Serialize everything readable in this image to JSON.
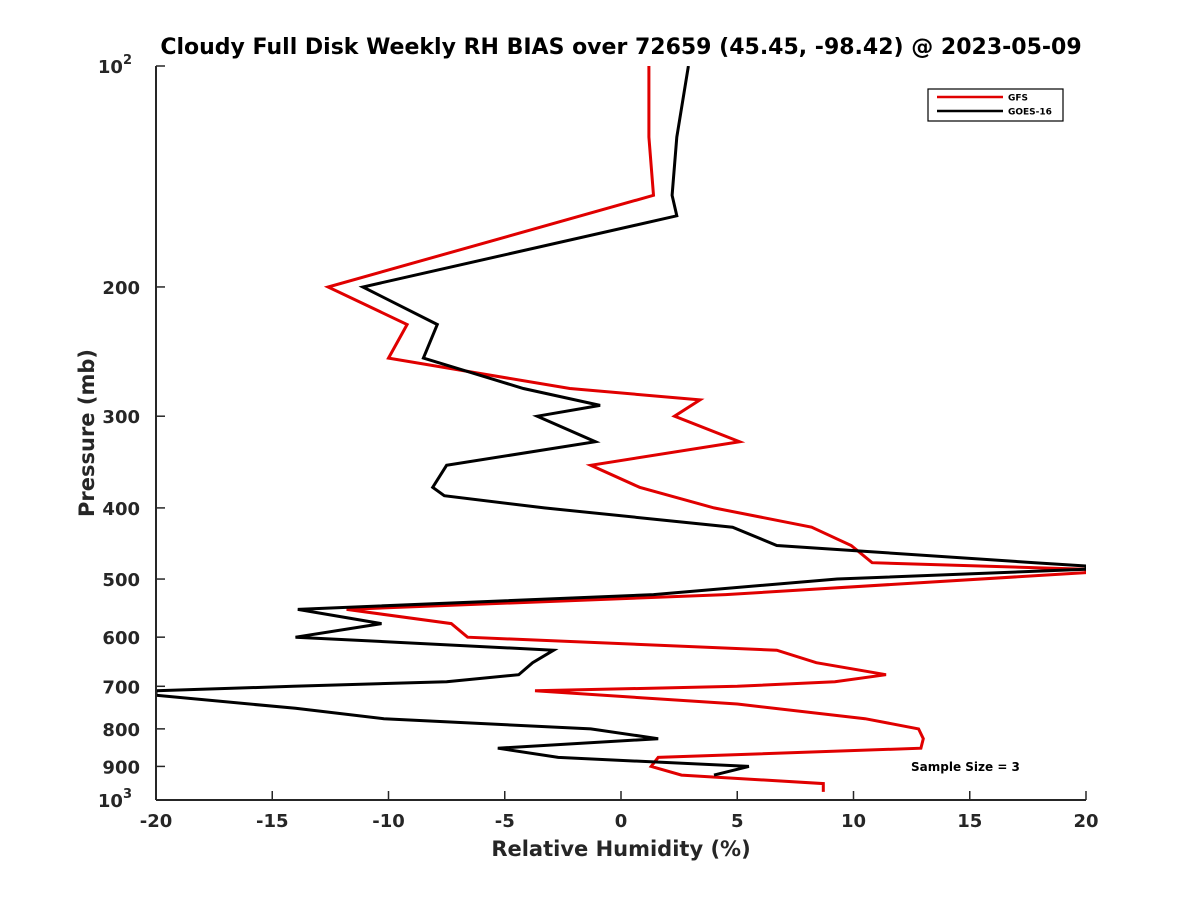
{
  "chart_data": {
    "type": "line",
    "title": "Cloudy Full Disk Weekly RH BIAS over 72659 (45.45, -98.42) @ 2023-05-09",
    "xlabel": "Relative Humidity (%)",
    "ylabel": "Pressure (mb)",
    "xlim": [
      -20,
      20
    ],
    "ylim": [
      100,
      1000
    ],
    "yscale": "log",
    "y_reversed": true,
    "x_ticks": [
      "-20",
      "-15",
      "-10",
      "-5",
      "0",
      "5",
      "10",
      "15",
      "20"
    ],
    "y_ticks": [
      {
        "value": 100,
        "base": "10",
        "exp": "2"
      },
      {
        "value": 200,
        "label": "200"
      },
      {
        "value": 300,
        "label": "300"
      },
      {
        "value": 400,
        "label": "400"
      },
      {
        "value": 500,
        "label": "500"
      },
      {
        "value": 600,
        "label": "600"
      },
      {
        "value": 700,
        "label": "700"
      },
      {
        "value": 800,
        "label": "800"
      },
      {
        "value": 900,
        "label": "900"
      },
      {
        "value": 1000,
        "base": "10",
        "exp": "3"
      }
    ],
    "legend_position": "top-right",
    "annotation": "Sample Size = 3",
    "series": [
      {
        "name": "GFS",
        "color": "#e00000",
        "points": [
          [
            1.2,
            100
          ],
          [
            1.2,
            125
          ],
          [
            1.4,
            150
          ],
          [
            -12.6,
            200
          ],
          [
            -9.2,
            225
          ],
          [
            -10.0,
            250
          ],
          [
            -2.2,
            275
          ],
          [
            3.4,
            285
          ],
          [
            2.3,
            300
          ],
          [
            5.1,
            325
          ],
          [
            -1.3,
            350
          ],
          [
            0.8,
            375
          ],
          [
            4.0,
            400
          ],
          [
            8.2,
            425
          ],
          [
            9.9,
            450
          ],
          [
            10.8,
            475
          ],
          [
            20.0,
            485
          ],
          [
            20.0,
            490
          ],
          [
            4.5,
            525
          ],
          [
            -11.8,
            550
          ],
          [
            -7.3,
            575
          ],
          [
            -6.6,
            600
          ],
          [
            6.7,
            625
          ],
          [
            8.4,
            650
          ],
          [
            11.4,
            675
          ],
          [
            9.2,
            690
          ],
          [
            5.0,
            700
          ],
          [
            -3.7,
            710
          ],
          [
            5.0,
            740
          ],
          [
            10.5,
            775
          ],
          [
            12.8,
            800
          ],
          [
            13.0,
            825
          ],
          [
            12.9,
            850
          ],
          [
            1.6,
            875
          ],
          [
            1.3,
            900
          ],
          [
            2.6,
            925
          ],
          [
            8.7,
            950
          ],
          [
            8.7,
            975
          ]
        ]
      },
      {
        "name": "GOES-16",
        "color": "#000000",
        "points": [
          [
            2.9,
            100
          ],
          [
            2.4,
            125
          ],
          [
            2.2,
            150
          ],
          [
            2.4,
            160
          ],
          [
            -11.1,
            200
          ],
          [
            -7.9,
            225
          ],
          [
            -8.5,
            250
          ],
          [
            -4.2,
            275
          ],
          [
            -0.9,
            290
          ],
          [
            -3.6,
            300
          ],
          [
            -1.1,
            325
          ],
          [
            -7.5,
            350
          ],
          [
            -8.1,
            375
          ],
          [
            -7.6,
            385
          ],
          [
            -3.3,
            400
          ],
          [
            4.8,
            425
          ],
          [
            6.7,
            450
          ],
          [
            17.8,
            475
          ],
          [
            20.0,
            480
          ],
          [
            20.0,
            485
          ],
          [
            9.3,
            500
          ],
          [
            1.4,
            525
          ],
          [
            -13.9,
            550
          ],
          [
            -10.3,
            575
          ],
          [
            -14.0,
            600
          ],
          [
            -2.9,
            625
          ],
          [
            -3.8,
            650
          ],
          [
            -4.4,
            675
          ],
          [
            -7.5,
            690
          ],
          [
            -14.1,
            700
          ],
          [
            -20.0,
            710
          ],
          [
            -20.0,
            720
          ],
          [
            -14.0,
            750
          ],
          [
            -10.2,
            775
          ],
          [
            -1.3,
            800
          ],
          [
            1.6,
            825
          ],
          [
            -5.3,
            850
          ],
          [
            -2.7,
            875
          ],
          [
            5.5,
            900
          ],
          [
            4.0,
            925
          ]
        ]
      }
    ]
  }
}
